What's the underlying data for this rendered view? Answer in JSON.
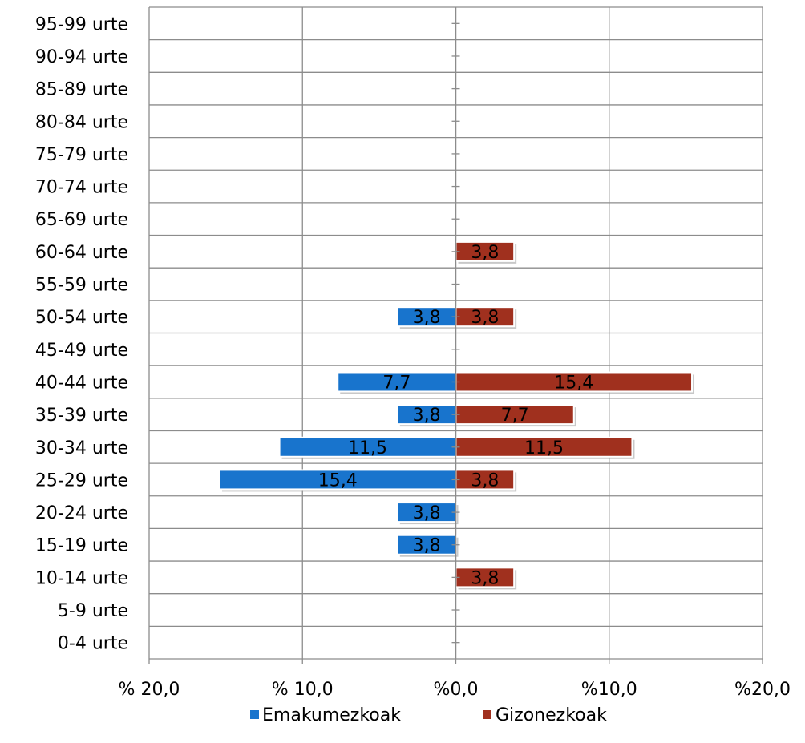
{
  "chart_data": {
    "type": "bar",
    "orientation": "horizontal",
    "categories": [
      "95-99 urte",
      "90-94 urte",
      "85-89 urte",
      "80-84 urte",
      "75-79 urte",
      "70-74 urte",
      "65-69 urte",
      "60-64 urte",
      "55-59 urte",
      "50-54 urte",
      "45-49 urte",
      "40-44 urte",
      "35-39 urte",
      "30-34 urte",
      "25-29 urte",
      "20-24 urte",
      "15-19 urte",
      "10-14 urte",
      "5-9 urte",
      "0-4 urte"
    ],
    "series": [
      {
        "name": "Emakumezkoak",
        "color": "#1874CD",
        "values": [
          null,
          null,
          null,
          null,
          null,
          null,
          null,
          null,
          null,
          3.8,
          null,
          7.7,
          3.8,
          11.5,
          15.4,
          3.8,
          3.8,
          null,
          null,
          null
        ],
        "labels": [
          "",
          "",
          "",
          "",
          "",
          "",
          "",
          "",
          "",
          "3,8",
          "",
          "7,7",
          "3,8",
          "11,5",
          "15,4",
          "3,8",
          "3,8",
          "",
          "",
          ""
        ]
      },
      {
        "name": "Gizonezkoak",
        "color": "#A0301E",
        "values": [
          null,
          null,
          null,
          null,
          null,
          null,
          null,
          3.8,
          null,
          3.8,
          null,
          15.4,
          7.7,
          11.5,
          3.8,
          null,
          null,
          3.8,
          null,
          null
        ],
        "labels": [
          "",
          "",
          "",
          "",
          "",
          "",
          "",
          "3,8",
          "",
          "3,8",
          "",
          "15,4",
          "7,7",
          "11,5",
          "3,8",
          "",
          "",
          "3,8",
          "",
          ""
        ]
      }
    ],
    "xlim": [
      -20,
      20
    ],
    "xticks": [
      -20,
      -10,
      0,
      10,
      20
    ],
    "xtick_labels": [
      "% 20,0",
      "% 10,0",
      "%0,0",
      "%10,0",
      "%20,0"
    ],
    "grid": true,
    "legend_position": "bottom",
    "title": "",
    "xlabel": "",
    "ylabel": ""
  }
}
